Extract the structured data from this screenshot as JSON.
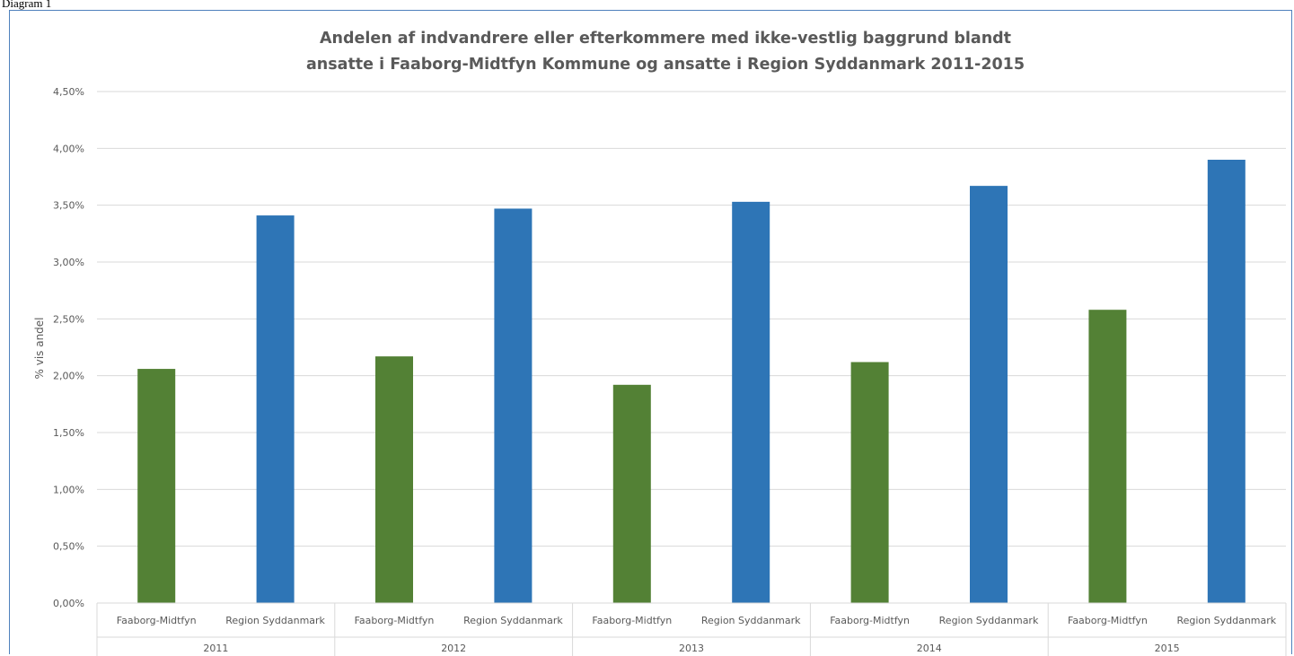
{
  "caption": "Diagram 1",
  "colors": {
    "series_1": "#538135",
    "series_2": "#2e75b6",
    "grid": "#d9d9d9",
    "text": "#595959"
  },
  "chart_data": {
    "type": "bar",
    "title_lines": [
      "Andelen af indvandrere eller efterkommere med ikke-vestlig baggrund blandt",
      "ansatte i Faaborg-Midtfyn Kommune og ansatte  i Region Syddanmark  2011-2015"
    ],
    "ylabel": "% vis andel",
    "ylim": [
      0,
      4.5
    ],
    "yticks": [
      "0,00%",
      "0,50%",
      "1,00%",
      "1,50%",
      "2,00%",
      "2,50%",
      "3,00%",
      "3,50%",
      "4,00%",
      "4,50%"
    ],
    "years": [
      "2011",
      "2012",
      "2013",
      "2014",
      "2015"
    ],
    "groups": [
      "Faaborg-Midtfyn",
      "Region Syddanmark"
    ],
    "values": [
      [
        2.06,
        3.41
      ],
      [
        2.17,
        3.47
      ],
      [
        1.92,
        3.53
      ],
      [
        2.12,
        3.67
      ],
      [
        2.58,
        3.9
      ]
    ]
  }
}
